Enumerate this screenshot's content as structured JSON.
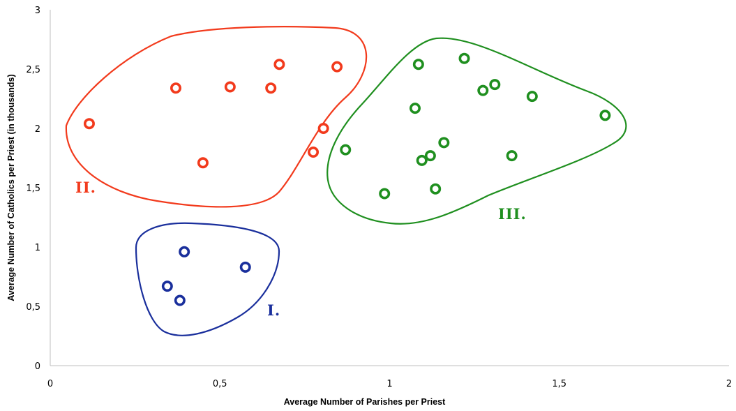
{
  "chart_data": {
    "type": "scatter",
    "title": "",
    "xlabel": "Average Number of Parishes per Priest",
    "ylabel": "Average Number of Catholics per Priest (in thousands)",
    "xlim": [
      0,
      2
    ],
    "ylim": [
      0,
      3
    ],
    "xticks": [
      {
        "value": 0,
        "label": "0"
      },
      {
        "value": 0.5,
        "label": "0,5"
      },
      {
        "value": 1,
        "label": "1"
      },
      {
        "value": 1.5,
        "label": "1,5"
      },
      {
        "value": 2,
        "label": "2"
      }
    ],
    "yticks": [
      {
        "value": 0,
        "label": "0"
      },
      {
        "value": 0.5,
        "label": "0,5"
      },
      {
        "value": 1,
        "label": "1"
      },
      {
        "value": 1.5,
        "label": "1,5"
      },
      {
        "value": 2,
        "label": "2"
      },
      {
        "value": 2.5,
        "label": "2,5"
      },
      {
        "value": 3,
        "label": "3"
      }
    ],
    "grid": false,
    "legend": "none",
    "series": [
      {
        "label": "I.",
        "color": "#1a2f9c",
        "points": [
          {
            "x": 0.395,
            "y": 0.96
          },
          {
            "x": 0.575,
            "y": 0.83
          },
          {
            "x": 0.345,
            "y": 0.67
          },
          {
            "x": 0.382,
            "y": 0.55
          }
        ]
      },
      {
        "label": "II.",
        "color": "#f23a1c",
        "points": [
          {
            "x": 0.115,
            "y": 2.04
          },
          {
            "x": 0.37,
            "y": 2.34
          },
          {
            "x": 0.45,
            "y": 1.71
          },
          {
            "x": 0.53,
            "y": 2.35
          },
          {
            "x": 0.65,
            "y": 2.34
          },
          {
            "x": 0.675,
            "y": 2.54
          },
          {
            "x": 0.775,
            "y": 1.8
          },
          {
            "x": 0.805,
            "y": 2.0
          },
          {
            "x": 0.845,
            "y": 2.52
          }
        ]
      },
      {
        "label": "III.",
        "color": "#1f8f1f",
        "points": [
          {
            "x": 0.87,
            "y": 1.82
          },
          {
            "x": 0.985,
            "y": 1.45
          },
          {
            "x": 1.075,
            "y": 2.17
          },
          {
            "x": 1.085,
            "y": 2.54
          },
          {
            "x": 1.095,
            "y": 1.73
          },
          {
            "x": 1.12,
            "y": 1.77
          },
          {
            "x": 1.135,
            "y": 1.49
          },
          {
            "x": 1.16,
            "y": 1.88
          },
          {
            "x": 1.22,
            "y": 2.59
          },
          {
            "x": 1.275,
            "y": 2.32
          },
          {
            "x": 1.31,
            "y": 2.37
          },
          {
            "x": 1.36,
            "y": 1.77
          },
          {
            "x": 1.42,
            "y": 2.27
          },
          {
            "x": 1.635,
            "y": 2.11
          }
        ]
      }
    ]
  }
}
